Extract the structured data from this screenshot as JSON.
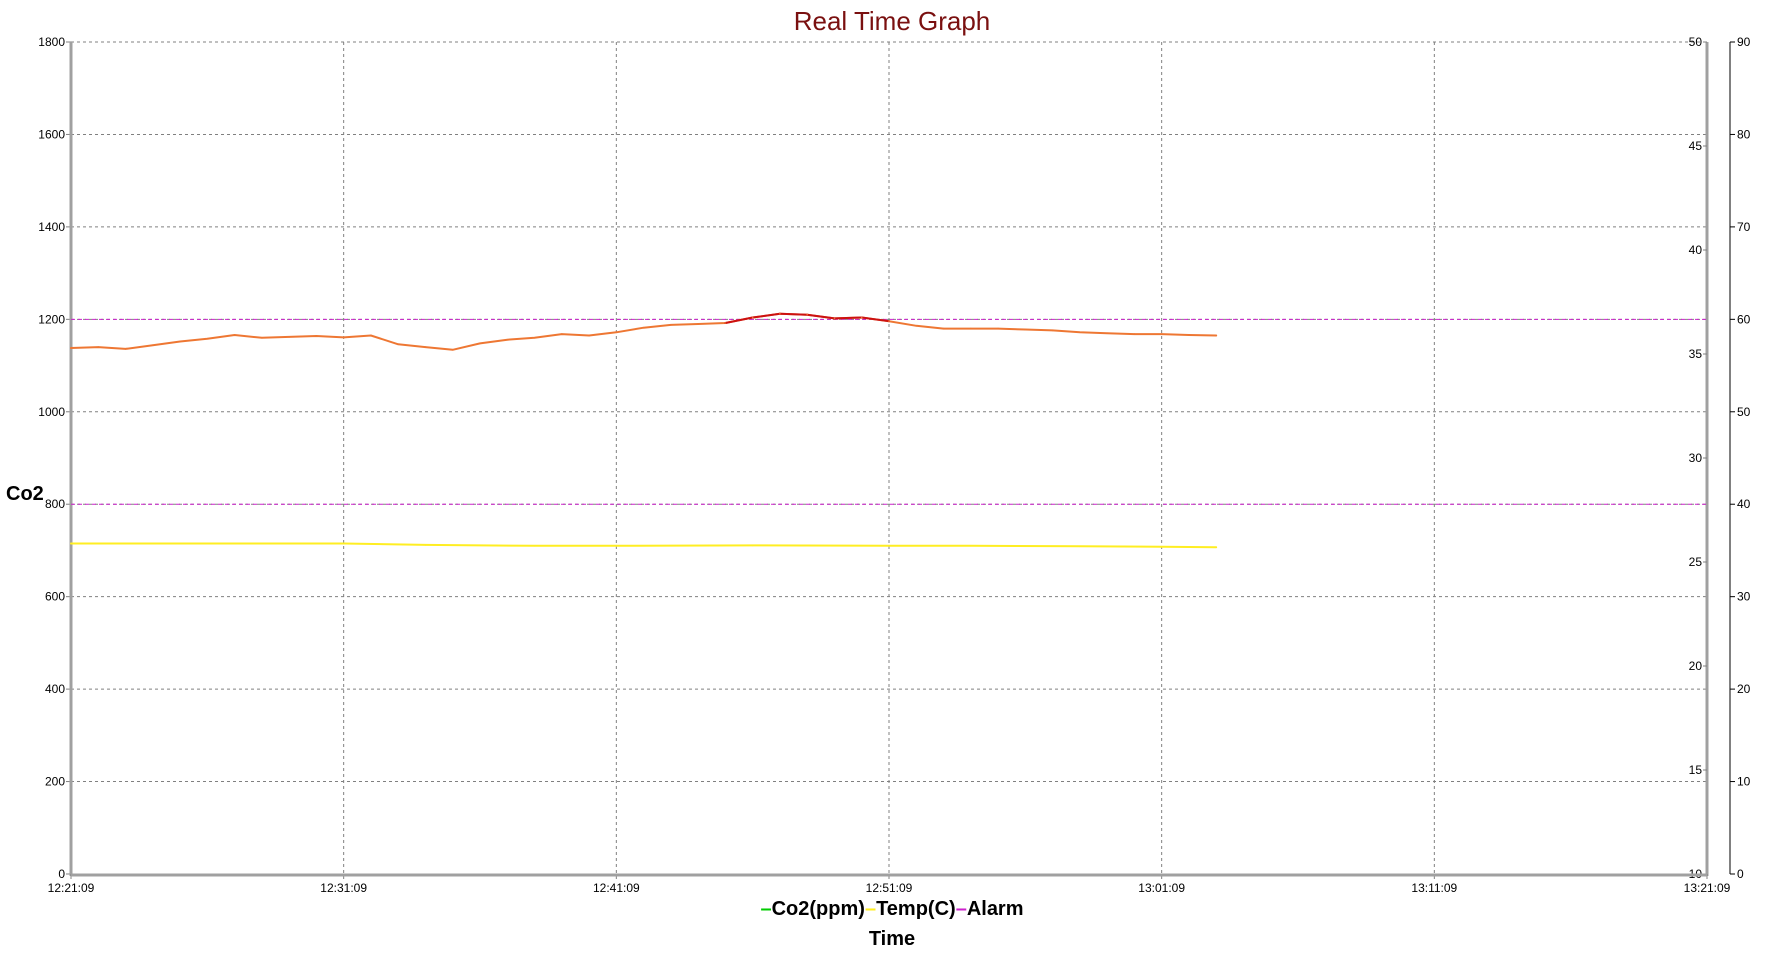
{
  "chart_data": {
    "type": "line",
    "title": "Real Time Graph",
    "xlabel": "Time",
    "ylabel": "Co2",
    "x_ticks": [
      "12:21:09",
      "12:31:09",
      "12:41:09",
      "12:51:09",
      "13:01:09",
      "13:11:09",
      "13:21:09"
    ],
    "x_range_minutes": [
      0,
      60
    ],
    "y_left": {
      "range": [
        0,
        1800
      ],
      "ticks": [
        0,
        200,
        400,
        600,
        800,
        1000,
        1200,
        1400,
        1600,
        1800
      ]
    },
    "y_right_inner": {
      "range": [
        10,
        50
      ],
      "ticks": [
        10,
        15,
        20,
        25,
        30,
        35,
        40,
        45,
        50
      ]
    },
    "y_right_outer": {
      "range": [
        0,
        90
      ],
      "ticks": [
        0,
        10,
        20,
        30,
        40,
        50,
        60,
        70,
        80,
        90
      ]
    },
    "grid": true,
    "legend_position": "bottom",
    "legend": [
      {
        "label": "Co2(ppm)",
        "color": "#00cc00"
      },
      {
        "label": "Temp(C)",
        "color": "#ffee22"
      },
      {
        "label": "Alarm",
        "color": "#cc22cc"
      }
    ],
    "alarm_levels": [
      800,
      1200
    ],
    "series": [
      {
        "name": "Co2(ppm)",
        "color": "#ee7733",
        "alarm_color": "#cc1111",
        "axis": "left",
        "x": [
          0,
          1,
          2,
          3,
          4,
          5,
          6,
          7,
          8,
          9,
          10,
          11,
          12,
          13,
          14,
          15,
          16,
          17,
          18,
          19,
          20,
          21,
          22,
          23,
          24,
          25,
          26,
          27,
          28,
          29,
          30,
          31,
          32,
          33,
          34,
          35,
          36,
          37,
          38,
          39,
          40,
          41,
          42
        ],
        "values": [
          1138,
          1140,
          1136,
          1144,
          1152,
          1158,
          1166,
          1160,
          1162,
          1164,
          1161,
          1165,
          1146,
          1140,
          1134,
          1148,
          1156,
          1160,
          1168,
          1165,
          1172,
          1182,
          1188,
          1190,
          1192,
          1204,
          1212,
          1210,
          1202,
          1204,
          1196,
          1186,
          1180,
          1180,
          1180,
          1178,
          1176,
          1172,
          1170,
          1168,
          1168,
          1166,
          1165
        ]
      },
      {
        "name": "Temp(C)",
        "color": "#ffee22",
        "axis": "left",
        "x": [
          0,
          5,
          10,
          13,
          17,
          20,
          25,
          30,
          33,
          37,
          40,
          42
        ],
        "values": [
          715,
          715,
          715,
          712,
          710,
          710,
          711,
          710,
          710,
          709,
          708,
          707
        ]
      }
    ]
  }
}
